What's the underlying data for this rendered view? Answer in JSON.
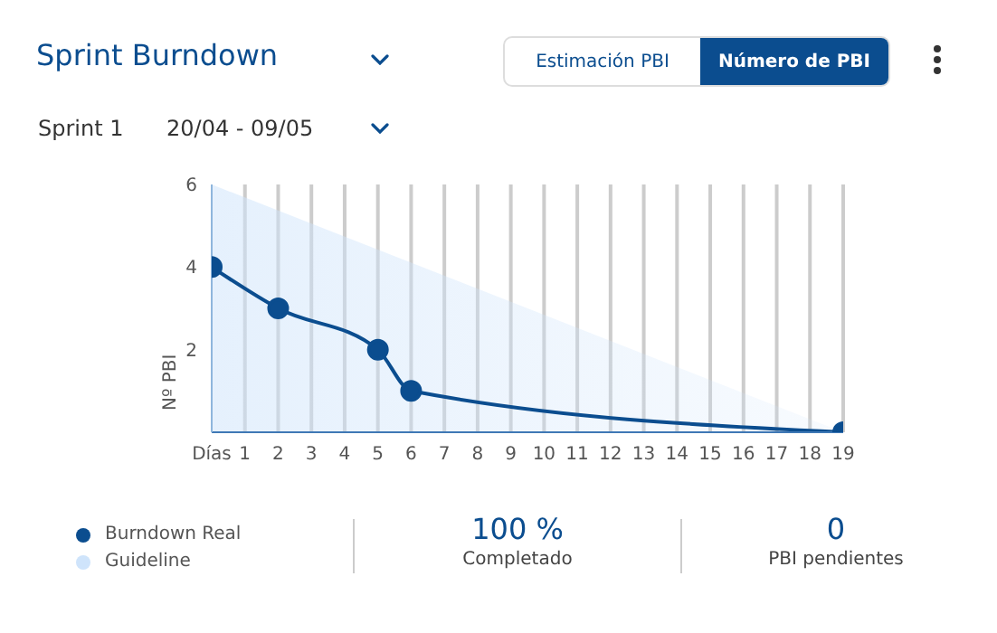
{
  "chart_data": {
    "type": "line",
    "title": "Sprint Burndown",
    "ylabel": "Nº PBI",
    "annotations": [
      "Sprint 1",
      "20/04 - 09/05",
      "Estimación PBI",
      "Número de PBI",
      "100 %",
      "Completado",
      "0",
      "PBI pendientes"
    ],
    "series": [
      {
        "name": "Burndown Real",
        "marker": "circle",
        "color": "#0b4d8f",
        "x": [
          0,
          2,
          5,
          6,
          19
        ],
        "values": [
          4,
          3,
          2,
          1,
          0
        ]
      },
      {
        "name": "Guideline",
        "type": "area",
        "color": "#cfe4fb",
        "x": [
          0,
          19
        ],
        "values": [
          6,
          0
        ]
      }
    ],
    "xlim": [
      0,
      19
    ],
    "xticks": [
      {
        "value": 0,
        "label": "Días"
      },
      1,
      2,
      3,
      4,
      5,
      6,
      7,
      8,
      9,
      10,
      11,
      12,
      13,
      14,
      15,
      16,
      17,
      18,
      19
    ],
    "ylim": [
      0,
      6
    ],
    "yticks": [
      2,
      4,
      6
    ],
    "grid": "x",
    "legend": "bottom left",
    "line_style": "solid"
  }
}
